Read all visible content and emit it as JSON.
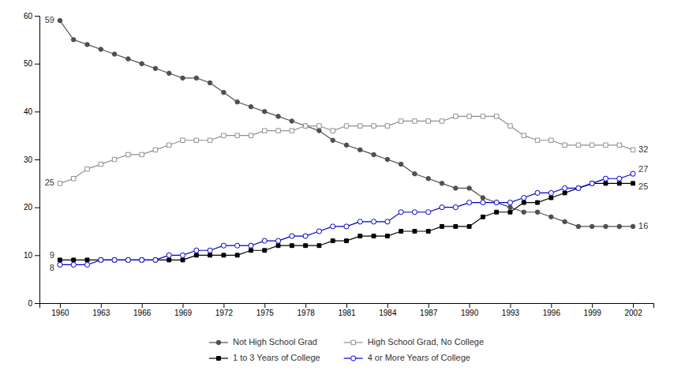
{
  "chart_data": {
    "type": "line",
    "x": [
      1960,
      1961,
      1962,
      1963,
      1964,
      1965,
      1966,
      1967,
      1968,
      1969,
      1970,
      1971,
      1972,
      1973,
      1974,
      1975,
      1976,
      1977,
      1978,
      1979,
      1980,
      1981,
      1982,
      1983,
      1984,
      1985,
      1986,
      1987,
      1988,
      1989,
      1990,
      1991,
      1992,
      1993,
      1994,
      1995,
      1996,
      1997,
      1998,
      1999,
      2000,
      2001,
      2002
    ],
    "series": [
      {
        "name": "Not High School Grad",
        "color": "#505050",
        "marker": "circle",
        "values": [
          59,
          55,
          54,
          53,
          52,
          51,
          50,
          49,
          48,
          47,
          47,
          46,
          44,
          42,
          41,
          40,
          39,
          38,
          37,
          36,
          34,
          33,
          32,
          31,
          30,
          29,
          27,
          26,
          25,
          24,
          24,
          22,
          21,
          20,
          19,
          19,
          18,
          17,
          16,
          16,
          16,
          16,
          16
        ]
      },
      {
        "name": "High School Grad, No College",
        "color": "#909090",
        "marker": "open-square",
        "values": [
          25,
          26,
          28,
          29,
          30,
          31,
          31,
          32,
          33,
          34,
          34,
          34,
          35,
          35,
          35,
          36,
          36,
          36,
          37,
          37,
          36,
          37,
          37,
          37,
          37,
          38,
          38,
          38,
          38,
          39,
          39,
          39,
          39,
          37,
          35,
          34,
          34,
          33,
          33,
          33,
          33,
          33,
          32
        ]
      },
      {
        "name": "1 to 3 Years of College",
        "color": "#000000",
        "marker": "square",
        "values": [
          9,
          9,
          9,
          9,
          9,
          9,
          9,
          9,
          9,
          9,
          10,
          10,
          10,
          10,
          11,
          11,
          12,
          12,
          12,
          12,
          13,
          13,
          14,
          14,
          14,
          15,
          15,
          15,
          16,
          16,
          16,
          18,
          19,
          19,
          21,
          21,
          22,
          23,
          24,
          25,
          25,
          25,
          25
        ]
      },
      {
        "name": "4 or More Years of College",
        "color": "#0000CC",
        "marker": "open-circle",
        "values": [
          8,
          8,
          8,
          9,
          9,
          9,
          9,
          9,
          10,
          10,
          11,
          11,
          12,
          12,
          12,
          13,
          13,
          14,
          14,
          15,
          16,
          16,
          17,
          17,
          17,
          19,
          19,
          19,
          20,
          20,
          21,
          21,
          21,
          21,
          22,
          23,
          23,
          24,
          24,
          25,
          26,
          26,
          27
        ]
      }
    ],
    "xlim": [
      1958.5,
      2003.5
    ],
    "xticks": [
      1960,
      1963,
      1966,
      1969,
      1972,
      1975,
      1978,
      1981,
      1984,
      1987,
      1990,
      1993,
      1996,
      1999,
      2002
    ],
    "ylim": [
      0,
      60
    ],
    "yticks": [
      0,
      10,
      20,
      30,
      40,
      50,
      60
    ],
    "grid": false,
    "annotations": [
      {
        "text": "59",
        "x": 1960,
        "y": 59
      },
      {
        "text": "25",
        "x": 1960,
        "y": 25
      },
      {
        "text": "9",
        "x": 1960,
        "y": 9
      },
      {
        "text": "8",
        "x": 1960,
        "y": 8
      },
      {
        "text": "32",
        "x": 2002,
        "y": 32
      },
      {
        "text": "27",
        "x": 2002,
        "y": 27
      },
      {
        "text": "25",
        "x": 2002,
        "y": 25
      },
      {
        "text": "16",
        "x": 2002,
        "y": 16
      }
    ]
  }
}
